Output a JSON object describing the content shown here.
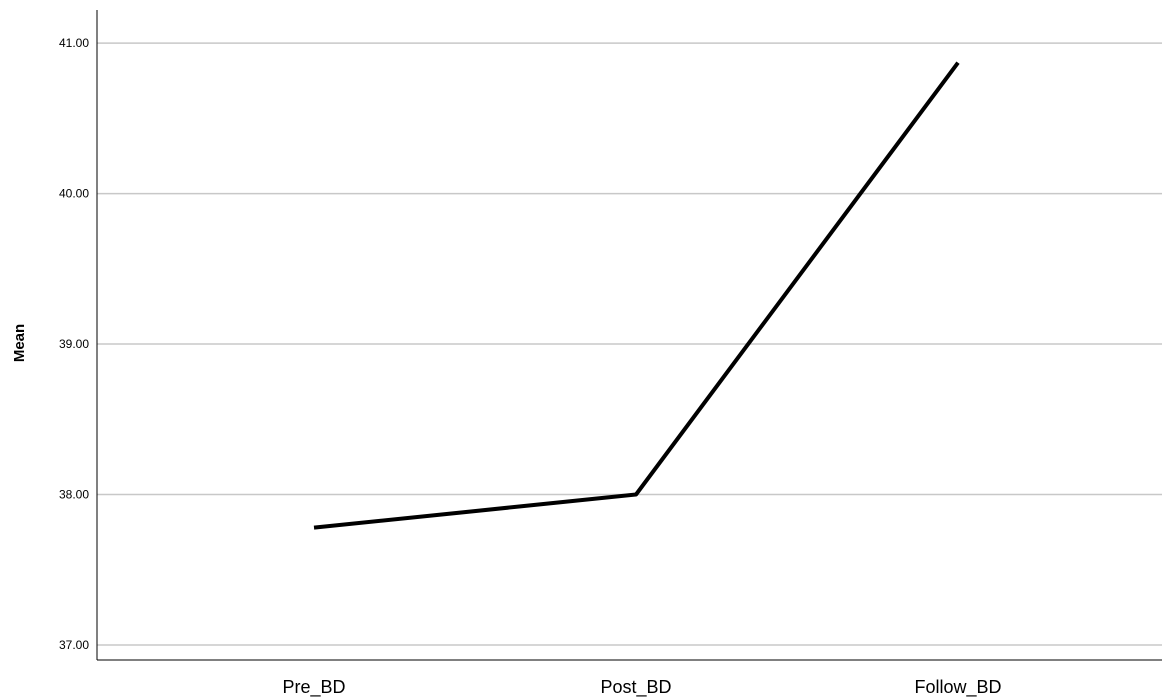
{
  "chart_data": {
    "type": "line",
    "title": "",
    "xlabel": "",
    "ylabel": "Mean",
    "categories": [
      "Pre_BD",
      "Post_BD",
      "Follow_BD"
    ],
    "series": [
      {
        "values": [
          37.78,
          38.0,
          40.87
        ]
      }
    ],
    "ylim": [
      36.9,
      41.22
    ],
    "yticks": [
      37.0,
      38.0,
      39.0,
      40.0,
      41.0
    ],
    "ytick_labels": [
      "37.00",
      "38.00",
      "39.00",
      "40.00",
      "41.00"
    ],
    "grid": "horizontal",
    "colors": {
      "line": "#000000",
      "grid": "#c8c8c8",
      "axis": "#000000"
    }
  }
}
